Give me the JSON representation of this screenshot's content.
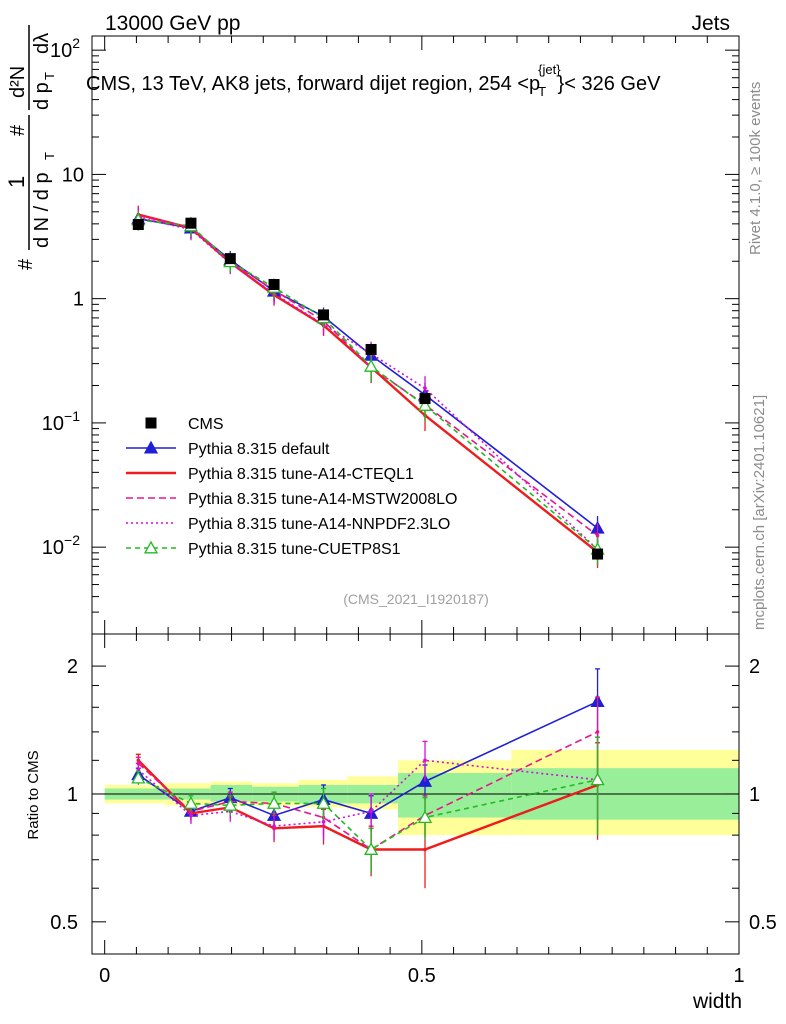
{
  "header": {
    "left": "13000 GeV pp",
    "right": "Jets"
  },
  "side_labels": {
    "rivet": "Rivet 4.1.0, ≥ 100k events",
    "mcplots": "mcplots.cern.ch [arXiv:2401.10621]"
  },
  "chart_data": {
    "type": "line",
    "title": "CMS, 13 TeV, AK8 jets, forward dijet region, 254 < p_T^{jet} < 326 GeV",
    "title_parts": {
      "prefix": "CMS, 13 TeV, AK8 jets, forward dijet region, 254 <",
      "p": "p",
      "sub": "T",
      "sup": "{jet}",
      "suffix": "}< 326 GeV"
    },
    "analysis_id": "(CMS_2021_I1920187)",
    "xlabel": "width",
    "xlim": [
      -0.02,
      1.0
    ],
    "x_ticks": [
      {
        "v": 0,
        "label": "0"
      },
      {
        "v": 0.5,
        "label": "0.5"
      },
      {
        "v": 1,
        "label": "1"
      }
    ],
    "main_panel": {
      "yscale": "log",
      "ylim": [
        0.002,
        130
      ],
      "ylabel_text": {
        "hash": "#",
        "one": "1",
        "dn": "d N / d p",
        "t": "T",
        "hash2": "#",
        "d2n": "d²N",
        "dpt": "d p",
        "t2": "T",
        "dl": "dλ"
      },
      "y_ticks": [
        {
          "v": 0.01,
          "base": "10",
          "exp": "−2"
        },
        {
          "v": 0.1,
          "base": "10",
          "exp": "−1"
        },
        {
          "v": 1,
          "label": "1"
        },
        {
          "v": 10,
          "label": "10"
        },
        {
          "v": 100,
          "base": "10",
          "exp": "2"
        }
      ]
    },
    "ratio_panel": {
      "ylabel": "Ratio to CMS",
      "yscale": "log",
      "ylim": [
        0.42,
        2.38
      ],
      "y_ticks": [
        {
          "v": 0.5,
          "label": "0.5"
        },
        {
          "v": 1,
          "label": "1"
        },
        {
          "v": 2,
          "label": "2"
        }
      ]
    },
    "x": [
      0.053,
      0.136,
      0.198,
      0.267,
      0.345,
      0.42,
      0.505,
      0.777
    ],
    "cms": {
      "name": "CMS",
      "values": [
        3.95,
        4.05,
        2.1,
        1.3,
        0.74,
        0.39,
        0.157,
        0.0088
      ],
      "band_lo": [
        0.97,
        0.97,
        0.96,
        0.96,
        0.95,
        0.95,
        0.88,
        0.87
      ],
      "band_hi": [
        1.03,
        1.03,
        1.05,
        1.04,
        1.05,
        1.05,
        1.12,
        1.15
      ],
      "band_lo2": [
        0.95,
        0.94,
        0.94,
        0.94,
        0.93,
        0.92,
        0.8,
        0.8
      ],
      "band_hi2": [
        1.05,
        1.06,
        1.07,
        1.06,
        1.08,
        1.1,
        1.2,
        1.27
      ]
    },
    "series": [
      {
        "name": "Pythia 8.315 default",
        "color": "#1f1fd6",
        "dash": "",
        "marker": "triangle-filled",
        "values": [
          4.4,
          3.7,
          2.05,
          1.15,
          0.72,
          0.35,
          0.168,
          0.0142
        ],
        "ratio": [
          1.11,
          0.91,
          0.98,
          0.89,
          0.97,
          0.9,
          1.07,
          1.65
        ],
        "ratio_err": [
          0.04,
          0.04,
          0.05,
          0.06,
          0.08,
          0.09,
          0.1,
          0.32
        ]
      },
      {
        "name": "Pythia 8.315 tune-A14-CTEQL1",
        "color": "#ee1c1c",
        "dash": "",
        "marker": "",
        "values": [
          4.75,
          3.7,
          1.95,
          1.07,
          0.61,
          0.28,
          0.115,
          0.0091
        ],
        "ratio": [
          1.2,
          0.9,
          0.93,
          0.83,
          0.84,
          0.74,
          0.74,
          1.05
        ],
        "ratio_err": [
          0.04,
          0.04,
          0.05,
          0.06,
          0.08,
          0.1,
          0.14,
          0.27
        ]
      },
      {
        "name": "Pythia 8.315 tune-A14-MSTW2008LO",
        "color": "#e8158d",
        "dash": "7,4",
        "marker": "",
        "values": [
          4.65,
          3.75,
          1.98,
          1.17,
          0.66,
          0.28,
          0.14,
          0.0124
        ],
        "ratio": [
          1.18,
          0.91,
          0.96,
          0.95,
          0.88,
          0.74,
          0.89,
          1.4
        ],
        "ratio_err": [
          0.04,
          0.04,
          0.05,
          0.06,
          0.08,
          0.09,
          0.1,
          0.29
        ]
      },
      {
        "name": "Pythia 8.315 tune-A14-NNPDF2.3LO",
        "color": "#d60fd6",
        "dash": "2,3",
        "marker": "",
        "values": [
          4.5,
          3.6,
          1.92,
          1.1,
          0.62,
          0.36,
          0.19,
          0.0096
        ],
        "ratio": [
          1.14,
          0.89,
          0.91,
          0.84,
          0.86,
          0.91,
          1.2,
          1.08
        ],
        "ratio_err": [
          0.04,
          0.04,
          0.05,
          0.06,
          0.08,
          0.09,
          0.13,
          0.28
        ]
      },
      {
        "name": "Pythia 8.315 tune-CUETP8S1",
        "color": "#22bb22",
        "dash": "5,4",
        "marker": "triangle-open",
        "values": [
          4.3,
          3.85,
          1.98,
          1.23,
          0.7,
          0.285,
          0.138,
          0.0096
        ],
        "ratio": [
          1.09,
          0.95,
          0.94,
          0.95,
          0.95,
          0.74,
          0.88,
          1.08
        ],
        "ratio_err": [
          0.04,
          0.04,
          0.05,
          0.06,
          0.08,
          0.09,
          0.1,
          0.28
        ]
      }
    ]
  }
}
